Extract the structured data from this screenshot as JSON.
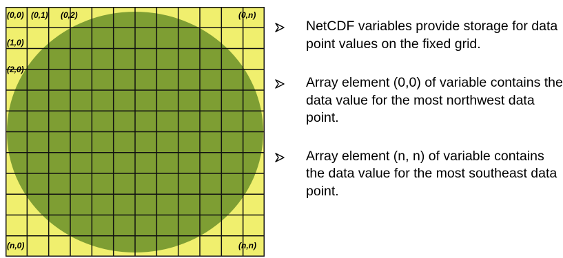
{
  "colors": {
    "background": "#f0ef6e",
    "circle": "#7e9e33",
    "grid_lines": "#111111"
  },
  "grid": {
    "columns": 12,
    "rows": 12,
    "labels": {
      "top_left": "(0,0)",
      "top_second": "(0,1)",
      "top_third": "(0,2)",
      "top_right": "(0,n)",
      "row_one": "(1,0)",
      "row_two": "(2,0)",
      "bottom_left": "(n,0)",
      "bottom_right": "(n,n)"
    }
  },
  "bullets": [
    {
      "icon": "arrow-bullet-icon",
      "text": "NetCDF variables provide storage for data point values on the fixed grid."
    },
    {
      "icon": "arrow-bullet-icon",
      "text": "Array element (0,0) of variable contains the data value for the most northwest data point."
    },
    {
      "icon": "arrow-bullet-icon",
      "text": "Array element (n, n) of variable contains the data value for the most southeast data point."
    }
  ]
}
